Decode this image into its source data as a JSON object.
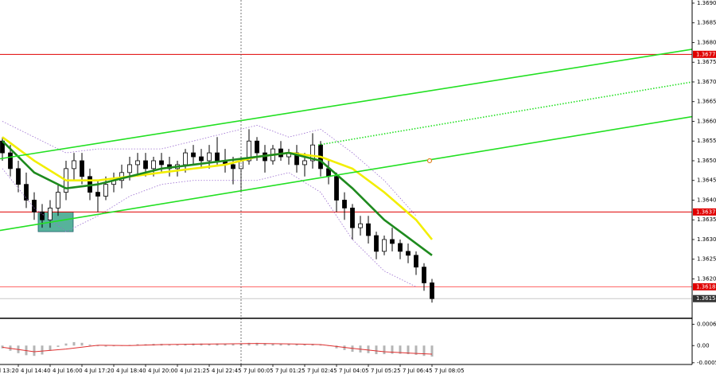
{
  "chart_data": [
    {
      "type": "candlestick",
      "xlim": [
        -0.3,
        86.7
      ],
      "ylim": [
        1.361,
        1.36908
      ],
      "yticks": [
        {
          "value": 1.369,
          "label": "1.3690"
        },
        1.3685,
        {
          "value": 1.368,
          "label": "1.3680"
        },
        1.3675,
        {
          "value": 1.367,
          "label": "1.3670"
        },
        1.3665,
        {
          "value": 1.366,
          "label": "1.3660"
        },
        1.3655,
        {
          "value": 1.365,
          "label": "1.3650"
        },
        1.3645,
        {
          "value": 1.364,
          "label": "1.3640"
        },
        1.3635,
        {
          "value": 1.363,
          "label": "1.3630"
        },
        1.3625,
        {
          "value": 1.362,
          "label": "1.3620"
        }
      ],
      "ohlc": [
        [
          1.3655,
          1.3656,
          1.365,
          1.3652
        ],
        [
          1.3652,
          1.3654,
          1.3646,
          1.3648
        ],
        [
          1.3648,
          1.365,
          1.3642,
          1.3644
        ],
        [
          1.3644,
          1.3647,
          1.3638,
          1.364
        ],
        [
          1.364,
          1.3642,
          1.3635,
          1.3637
        ],
        [
          1.3637,
          1.3639,
          1.3633,
          1.3635
        ],
        [
          1.3635,
          1.364,
          1.3633,
          1.3638
        ],
        [
          1.3638,
          1.3644,
          1.3636,
          1.3642
        ],
        [
          1.3642,
          1.365,
          1.364,
          1.3648
        ],
        [
          1.3648,
          1.3652,
          1.3645,
          1.365
        ],
        [
          1.365,
          1.3652,
          1.3644,
          1.3646
        ],
        [
          1.3646,
          1.3648,
          1.364,
          1.3642
        ],
        [
          1.3642,
          1.3645,
          1.3637,
          1.3641
        ],
        [
          1.3641,
          1.3646,
          1.364,
          1.3644
        ],
        [
          1.3644,
          1.3647,
          1.3642,
          1.3645
        ],
        [
          1.3645,
          1.3649,
          1.3643,
          1.3647
        ],
        [
          1.3647,
          1.3651,
          1.3645,
          1.3649
        ],
        [
          1.3649,
          1.3652,
          1.3646,
          1.365
        ],
        [
          1.365,
          1.3652,
          1.3646,
          1.3648
        ],
        [
          1.3648,
          1.3651,
          1.3646,
          1.365
        ],
        [
          1.365,
          1.3652,
          1.3647,
          1.3649
        ],
        [
          1.3649,
          1.3651,
          1.3646,
          1.3648
        ],
        [
          1.3648,
          1.365,
          1.3646,
          1.3649
        ],
        [
          1.3649,
          1.3653,
          1.3647,
          1.3652
        ],
        [
          1.3652,
          1.3654,
          1.3649,
          1.3651
        ],
        [
          1.3651,
          1.3653,
          1.3648,
          1.365
        ],
        [
          1.365,
          1.3654,
          1.3648,
          1.3652
        ],
        [
          1.3652,
          1.3656,
          1.3649,
          1.365
        ],
        [
          1.365,
          1.3653,
          1.3647,
          1.3649
        ],
        [
          1.3649,
          1.3651,
          1.3644,
          1.3648
        ],
        [
          1.3648,
          1.3651,
          1.3642,
          1.365
        ],
        [
          1.365,
          1.3658,
          1.3649,
          1.3655
        ],
        [
          1.3655,
          1.3656,
          1.365,
          1.3652
        ],
        [
          1.3652,
          1.3654,
          1.3647,
          1.365
        ],
        [
          1.365,
          1.3654,
          1.3649,
          1.3653
        ],
        [
          1.3653,
          1.3655,
          1.365,
          1.3651
        ],
        [
          1.3651,
          1.3653,
          1.3649,
          1.3652
        ],
        [
          1.3652,
          1.3654,
          1.3647,
          1.3649
        ],
        [
          1.3649,
          1.3652,
          1.3646,
          1.365
        ],
        [
          1.365,
          1.3657,
          1.3648,
          1.3654
        ],
        [
          1.3654,
          1.3655,
          1.3646,
          1.3648
        ],
        [
          1.3648,
          1.365,
          1.3644,
          1.3646
        ],
        [
          1.3646,
          1.3647,
          1.3637,
          1.364
        ],
        [
          1.364,
          1.3642,
          1.3635,
          1.3638
        ],
        [
          1.3638,
          1.3639,
          1.363,
          1.3633
        ],
        [
          1.3633,
          1.3636,
          1.3631,
          1.3634
        ],
        [
          1.3634,
          1.3636,
          1.3629,
          1.3631
        ],
        [
          1.3631,
          1.3632,
          1.3625,
          1.3627
        ],
        [
          1.3627,
          1.3631,
          1.3626,
          1.363
        ],
        [
          1.363,
          1.3633,
          1.3627,
          1.3629
        ],
        [
          1.3629,
          1.363,
          1.3625,
          1.3627
        ],
        [
          1.3627,
          1.3629,
          1.3624,
          1.3626
        ],
        [
          1.3626,
          1.3627,
          1.3621,
          1.3623
        ],
        [
          1.3623,
          1.3624,
          1.3617,
          1.3619
        ],
        [
          1.3619,
          1.362,
          1.3614,
          1.3615
        ]
      ],
      "bull_color": "#ffffff",
      "bear_color": "#000000",
      "wick_color": "#000000",
      "series": [
        {
          "color": "#f2ee00",
          "style": "solid",
          "x": [
            0,
            4,
            8,
            12,
            16,
            20,
            24,
            28,
            32,
            36,
            40,
            44,
            48,
            52,
            54
          ],
          "values": [
            1.3656,
            1.365,
            1.3645,
            1.3645,
            1.3646,
            1.3647,
            1.3648,
            1.3649,
            1.3651,
            1.3652,
            1.3651,
            1.3648,
            1.3642,
            1.3635,
            1.363
          ]
        },
        {
          "color": "#1e8a1e",
          "style": "solid",
          "x": [
            0,
            4,
            8,
            12,
            16,
            20,
            24,
            28,
            32,
            36,
            40,
            44,
            48,
            52,
            54
          ],
          "values": [
            1.3655,
            1.3647,
            1.3643,
            1.3644,
            1.3646,
            1.3648,
            1.3649,
            1.365,
            1.3651,
            1.3652,
            1.365,
            1.3643,
            1.3635,
            1.3629,
            1.3626
          ]
        },
        {
          "color": "#9a6cd0",
          "style": "dotted",
          "x": [
            0,
            4,
            8,
            12,
            16,
            20,
            24,
            28,
            32,
            36,
            40,
            44,
            48,
            52
          ],
          "values": [
            1.366,
            1.3656,
            1.3652,
            1.3653,
            1.3653,
            1.3653,
            1.3655,
            1.3657,
            1.3659,
            1.3656,
            1.3658,
            1.3652,
            1.3645,
            1.3636
          ]
        },
        {
          "color": "#9a6cd0",
          "style": "dotted",
          "x": [
            0,
            4,
            8,
            12,
            16,
            20,
            24,
            28,
            32,
            36,
            40,
            44,
            48,
            52
          ],
          "values": [
            1.3648,
            1.3638,
            1.3632,
            1.3636,
            1.3641,
            1.3644,
            1.3645,
            1.3645,
            1.3645,
            1.3647,
            1.3642,
            1.363,
            1.3622,
            1.3618
          ]
        },
        {
          "color": "#22e022",
          "style": "solid",
          "x": [
            -0.3,
            86.7
          ],
          "values": [
            1.36505,
            1.36783
          ]
        },
        {
          "color": "#22e022",
          "style": "solid",
          "x": [
            -0.3,
            86.7
          ],
          "values": [
            1.36323,
            1.36612
          ]
        },
        {
          "color": "#22e022",
          "style": "dotted",
          "x": [
            39.7,
            86.7
          ],
          "values": [
            1.3654,
            1.367
          ]
        }
      ],
      "levels": [
        {
          "value": 1.3677,
          "color": "#e00000",
          "label_color": "#e00000"
        },
        {
          "value": 1.3637,
          "color": "#e00000",
          "label_color": "#e00000"
        },
        {
          "value": 1.3618,
          "color": "#ff6060",
          "label_color": "#e00000"
        },
        {
          "value": 1.3615,
          "color": "#c8c8c8",
          "label_color": "#333333"
        }
      ],
      "box": {
        "x": [
          4.5,
          8.9
        ],
        "values": [
          1.3632,
          1.3637
        ],
        "color": "#3aa58a"
      },
      "marker": {
        "x": 53.7,
        "value": 1.365,
        "color": "#e08020"
      }
    },
    {
      "type": "bar",
      "xlim": [
        -0.3,
        86.7
      ],
      "ylim": [
        -0.00055,
        0.00077
      ],
      "yticks": [
        0.00062,
        {
          "value": 0,
          "label": "0.00"
        },
        -0.0005
      ],
      "xticks": [
        {
          "value": -2,
          "label": "4 Jul 13:20"
        },
        {
          "value": 2,
          "label": "4 Jul 14:40"
        },
        {
          "value": 6,
          "label": "4 Jul 16:00"
        },
        {
          "value": 10,
          "label": "4 Jul 17:20"
        },
        {
          "value": 14,
          "label": "4 Jul 18:40"
        },
        {
          "value": 18,
          "label": "4 Jul 20:00"
        },
        {
          "value": 22,
          "label": "4 Jul 21:25"
        },
        {
          "value": 26,
          "label": "4 Jul 22:45"
        },
        {
          "value": 30,
          "label": "7 Jul 00:05"
        },
        {
          "value": 34,
          "label": "7 Jul 01:25"
        },
        {
          "value": 38,
          "label": "7 Jul 02:45"
        },
        {
          "value": 42,
          "label": "7 Jul 04:05"
        },
        {
          "value": 46,
          "label": "7 Jul 05:25"
        },
        {
          "value": 50,
          "label": "7 Jul 06:45"
        },
        {
          "value": 54,
          "label": "7 Jul 08:05"
        }
      ],
      "color": "#b4b4b4",
      "values": [
        -8e-05,
        -0.00015,
        -0.00022,
        -0.00028,
        -0.0003,
        -0.00026,
        -0.00015,
        -4e-05,
        6e-05,
        0.0001,
        8e-05,
        3e-05,
        -2e-05,
        -3e-05,
        -2e-05,
        0,
        2e-05,
        4e-05,
        4e-05,
        5e-05,
        5e-05,
        4e-05,
        4e-05,
        5e-05,
        6e-05,
        6e-05,
        5e-05,
        6e-05,
        5e-05,
        4e-05,
        4e-05,
        8e-05,
        8e-05,
        7e-05,
        6e-05,
        5e-05,
        5e-05,
        4e-05,
        3e-05,
        5e-05,
        3e-05,
        0,
        -8e-05,
        -0.00013,
        -0.00018,
        -0.0002,
        -0.00022,
        -0.00025,
        -0.00025,
        -0.00024,
        -0.00024,
        -0.00025,
        -0.00027,
        -0.0003,
        -0.00032
      ],
      "series": [
        {
          "color": "#e03030",
          "style": "solid",
          "x": [
            0,
            4,
            8,
            12,
            16,
            20,
            24,
            28,
            32,
            36,
            40,
            44,
            48,
            52,
            54
          ],
          "values": [
            -5e-05,
            -0.00018,
            -0.0001,
            1e-05,
            0,
            3e-05,
            4e-05,
            5e-05,
            6e-05,
            5e-05,
            3e-05,
            -8e-05,
            -0.00018,
            -0.00023,
            -0.00025
          ]
        }
      ]
    }
  ]
}
